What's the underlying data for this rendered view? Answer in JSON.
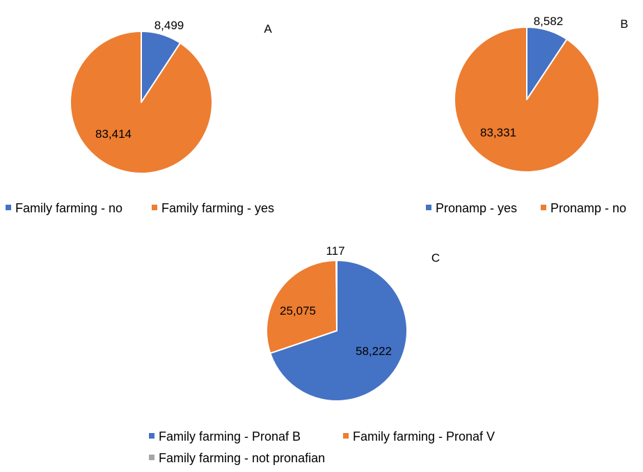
{
  "chart_data": [
    {
      "type": "pie",
      "panel_label": "A",
      "slices": [
        {
          "name": "Family farming - no",
          "value": 8499,
          "label": "8,499",
          "color": "#4472C4"
        },
        {
          "name": "Family farming - yes",
          "value": 83414,
          "label": "83,414",
          "color": "#ED7D31"
        }
      ],
      "legend_placement": "bottom"
    },
    {
      "type": "pie",
      "panel_label": "B",
      "slices": [
        {
          "name": "Pronamp - yes",
          "value": 8582,
          "label": "8,582",
          "color": "#4472C4"
        },
        {
          "name": "Pronamp - no",
          "value": 83331,
          "label": "83,331",
          "color": "#ED7D31"
        }
      ],
      "legend_placement": "bottom"
    },
    {
      "type": "pie",
      "panel_label": "C",
      "slices": [
        {
          "name": "Family farming - Pronaf B",
          "value": 58222,
          "label": "58,222",
          "color": "#4472C4"
        },
        {
          "name": "Family farming - Pronaf V",
          "value": 25075,
          "label": "25,075",
          "color": "#ED7D31"
        },
        {
          "name": "Family farming - not pronafian",
          "value": 117,
          "label": "117",
          "color": "#A5A5A5"
        }
      ],
      "legend_placement": "bottom"
    }
  ]
}
